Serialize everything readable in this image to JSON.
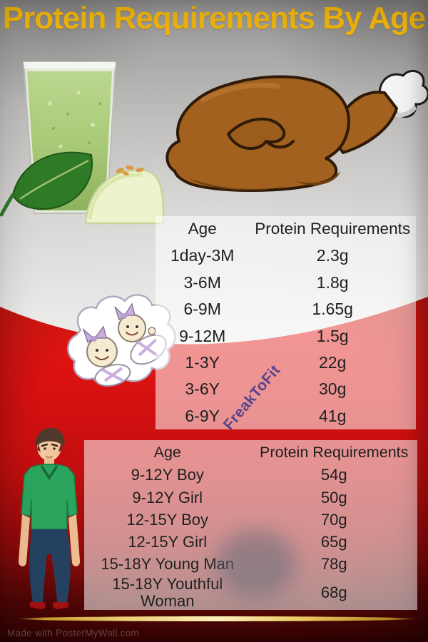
{
  "title": "Protein Requirements By Age",
  "tables": {
    "infants": {
      "headers": [
        "Age",
        "Protein Requirements"
      ],
      "rows": [
        [
          "1day-3M",
          "2.3g"
        ],
        [
          "3-6M",
          "1.8g"
        ],
        [
          "6-9M",
          "1.65g"
        ],
        [
          "9-12M",
          "1.5g"
        ],
        [
          "1-3Y",
          "22g"
        ],
        [
          "3-6Y",
          "30g"
        ],
        [
          "6-9Y",
          "41g"
        ]
      ]
    },
    "youth": {
      "headers": [
        "Age",
        "Protein Requirements"
      ],
      "rows": [
        [
          "9-12Y Boy",
          "54g"
        ],
        [
          "9-12Y Girl",
          "50g"
        ],
        [
          "12-15Y Boy",
          "70g"
        ],
        [
          "12-15Y Girl",
          "65g"
        ],
        [
          "15-18Y Young Man",
          "78g"
        ],
        [
          "15-18Y Youthful Woman",
          "68g"
        ]
      ]
    }
  },
  "watermarks": {
    "diagonal": "FreakToFit",
    "footer": "Made with PosterMyWall.com"
  },
  "illustrations": {
    "smoothie": "green-smoothie-with-spinach-and-melon",
    "turkey": "roasted-turkey",
    "babies": "twin-babies-cloud",
    "man": "young-man-standing"
  },
  "colors": {
    "title_gold": "#edb20c",
    "background_red": "#d91111",
    "background_dark_red": "#3c0404",
    "table_overlay": "rgba(255,255,255,0.55)",
    "gold_line": "#f2d57b",
    "text": "#1f1f1f",
    "diagonal_watermark": "#31308a"
  }
}
